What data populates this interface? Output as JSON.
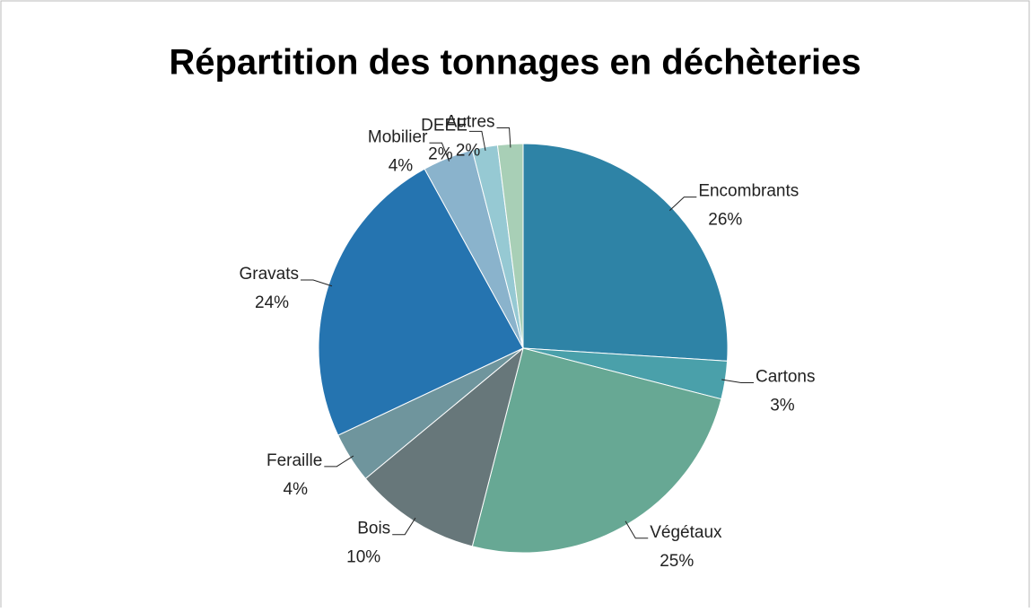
{
  "chart_data": {
    "type": "pie",
    "title": "Répartition des tonnages en déchèteries",
    "categories": [
      "Encombrants",
      "Cartons",
      "Végétaux",
      "Bois",
      "Feraille",
      "Gravats",
      "Mobilier",
      "DEEE",
      "Autres"
    ],
    "values": [
      26,
      3,
      25,
      10,
      4,
      24,
      4,
      2,
      2
    ],
    "value_labels": [
      "26%",
      "3%",
      "25%",
      "10%",
      "4%",
      "24%",
      "4%",
      "2%",
      "2%"
    ],
    "colors": [
      "#2e83a6",
      "#4aa0aa",
      "#67a894",
      "#67777a",
      "#6f959d",
      "#2574b0",
      "#8ab3cc",
      "#96c9d3",
      "#a8cfb6"
    ]
  }
}
